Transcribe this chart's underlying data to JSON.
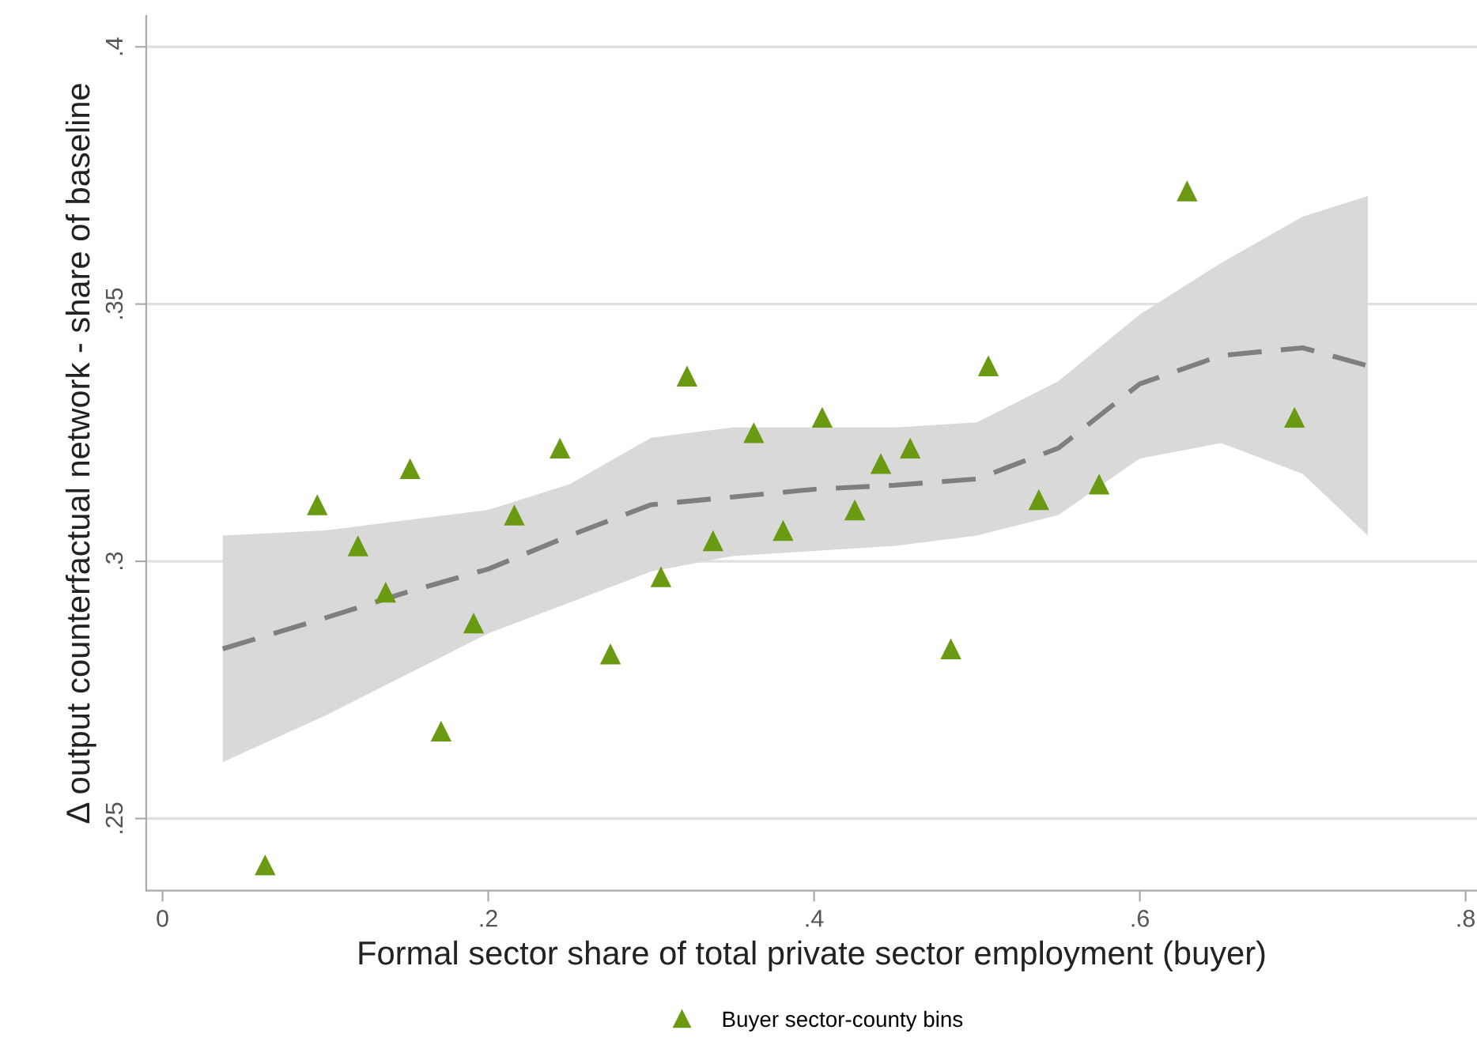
{
  "chart_data": {
    "type": "scatter",
    "xlabel": "Formal sector share of total private sector employment (buyer)",
    "ylabel": "Δ output counterfactual network - share of baseline",
    "xlim": [
      -0.01,
      0.807
    ],
    "ylim": [
      0.236,
      0.406
    ],
    "xticks": [
      0,
      {
        "value": 0.2,
        "label": ".2"
      },
      {
        "value": 0.4,
        "label": ".4"
      },
      {
        "value": 0.6,
        "label": ".6"
      },
      {
        "value": 0.8,
        "label": ".8"
      }
    ],
    "yticks": [
      {
        "value": 0.25,
        "label": ".25"
      },
      {
        "value": 0.3,
        "label": ".3"
      },
      {
        "value": 0.35,
        "label": ".35"
      },
      {
        "value": 0.4,
        "label": ".4"
      }
    ],
    "grid": "y",
    "legend": "bottom",
    "series": [
      {
        "name": "Buyer sector-county bins",
        "marker": "triangle",
        "color": "#6a9a12",
        "x": [
          0.063,
          0.095,
          0.12,
          0.137,
          0.152,
          0.171,
          0.191,
          0.216,
          0.244,
          0.275,
          0.306,
          0.322,
          0.338,
          0.363,
          0.381,
          0.405,
          0.425,
          0.441,
          0.459,
          0.484,
          0.507,
          0.538,
          0.575,
          0.629,
          0.695
        ],
        "values": [
          0.241,
          0.311,
          0.303,
          0.294,
          0.318,
          0.267,
          0.288,
          0.309,
          0.322,
          0.282,
          0.297,
          0.336,
          0.304,
          0.325,
          0.306,
          0.328,
          0.31,
          0.319,
          0.322,
          0.283,
          0.338,
          0.312,
          0.315,
          0.372,
          0.328
        ]
      },
      {
        "type": "line",
        "color": "#7f7f7f",
        "line_style": "dashed",
        "x": [
          0.037,
          0.1,
          0.15,
          0.2,
          0.25,
          0.3,
          0.35,
          0.4,
          0.45,
          0.5,
          0.55,
          0.6,
          0.65,
          0.7,
          0.74
        ],
        "values": [
          0.283,
          0.289,
          0.294,
          0.2985,
          0.305,
          0.311,
          0.3125,
          0.314,
          0.3148,
          0.316,
          0.322,
          0.3345,
          0.34,
          0.3415,
          0.338
        ],
        "upper": [
          0.305,
          0.306,
          0.308,
          0.31,
          0.315,
          0.324,
          0.326,
          0.326,
          0.326,
          0.327,
          0.335,
          0.348,
          0.358,
          0.367,
          0.371
        ],
        "lower": [
          0.261,
          0.27,
          0.278,
          0.286,
          0.292,
          0.298,
          0.301,
          0.302,
          0.303,
          0.305,
          0.309,
          0.32,
          0.323,
          0.317,
          0.305
        ]
      }
    ]
  }
}
